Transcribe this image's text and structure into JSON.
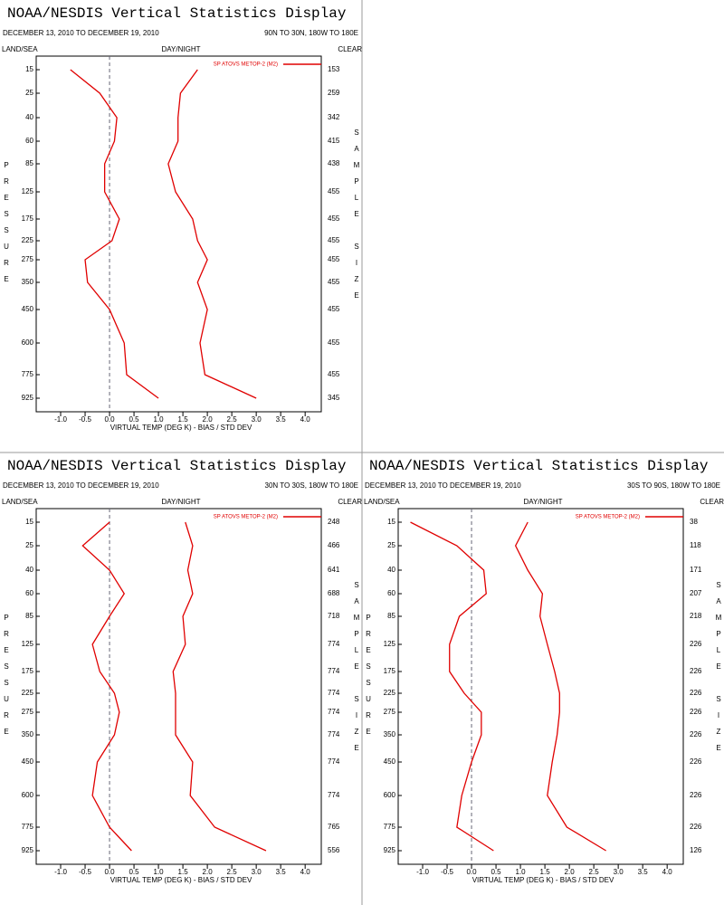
{
  "chart_data": [
    {
      "type": "line",
      "title": "NOAA/NESDIS Vertical Statistics Display",
      "subtitle": "DECEMBER 13, 2010 TO DECEMBER 19, 2010",
      "region": "90N TO 30N, 180W TO 180E",
      "land_sea": "LAND/SEA",
      "day_night": "DAY/NIGHT",
      "clear": "CLEAR",
      "y_label": "PRESSURE",
      "y2_label": "SAMPLE SIZE",
      "x_label": "VIRTUAL TEMP (DEG K) - BIAS / STD DEV",
      "categories": [
        15,
        25,
        40,
        60,
        85,
        125,
        175,
        225,
        275,
        350,
        450,
        600,
        775,
        925
      ],
      "sample_sizes": [
        153,
        259,
        342,
        415,
        438,
        455,
        455,
        455,
        455,
        455,
        455,
        455,
        455,
        345
      ],
      "series": [
        {
          "name": "SP ATOVS METOP-2 (M2)",
          "color": "#e00000",
          "bias": [
            -0.8,
            -0.2,
            0.15,
            0.1,
            -0.1,
            -0.1,
            0.2,
            0.05,
            -0.5,
            -0.45,
            0.0,
            0.3,
            0.35,
            1.0
          ],
          "std_dev": [
            1.8,
            1.45,
            1.4,
            1.4,
            1.2,
            1.35,
            1.7,
            1.8,
            2.0,
            1.8,
            2.0,
            1.85,
            1.95,
            3.0
          ]
        }
      ],
      "xlim": [
        -1.5,
        4.33
      ],
      "xticks": [
        {
          "value": -1,
          "label": "-1.0"
        },
        -0.5,
        {
          "value": 0,
          "label": "0.0"
        },
        0.5,
        {
          "value": 1,
          "label": "1.0"
        },
        1.5,
        {
          "value": 2,
          "label": "2.0"
        },
        2.5,
        {
          "value": 3,
          "label": "3.0"
        },
        3.5,
        {
          "value": 4,
          "label": "4.0"
        }
      ]
    },
    {
      "type": "line",
      "title": "NOAA/NESDIS Vertical Statistics Display",
      "subtitle": "DECEMBER 13, 2010 TO DECEMBER 19, 2010",
      "region": "30N TO 30S, 180W TO 180E",
      "land_sea": "LAND/SEA",
      "day_night": "DAY/NIGHT",
      "clear": "CLEAR",
      "y_label": "PRESSURE",
      "y2_label": "SAMPLE SIZE",
      "x_label": "VIRTUAL TEMP (DEG K) - BIAS / STD DEV",
      "categories": [
        15,
        25,
        40,
        60,
        85,
        125,
        175,
        225,
        275,
        350,
        450,
        600,
        775,
        925
      ],
      "sample_sizes": [
        248,
        466,
        641,
        688,
        718,
        774,
        774,
        774,
        774,
        774,
        774,
        774,
        765,
        556
      ],
      "series": [
        {
          "name": "SP ATOVS METOP-2 (M2)",
          "color": "#e00000",
          "bias": [
            0.0,
            -0.55,
            0.0,
            0.3,
            0.0,
            -0.35,
            -0.2,
            0.1,
            0.2,
            0.1,
            -0.25,
            -0.35,
            0.0,
            0.45
          ],
          "std_dev": [
            1.55,
            1.7,
            1.6,
            1.7,
            1.5,
            1.55,
            1.3,
            1.35,
            1.35,
            1.35,
            1.7,
            1.65,
            2.15,
            3.2
          ]
        }
      ],
      "xlim": [
        -1.5,
        4.33
      ],
      "xticks": [
        {
          "value": -1,
          "label": "-1.0"
        },
        -0.5,
        {
          "value": 0,
          "label": "0.0"
        },
        0.5,
        {
          "value": 1,
          "label": "1.0"
        },
        1.5,
        {
          "value": 2,
          "label": "2.0"
        },
        2.5,
        {
          "value": 3,
          "label": "3.0"
        },
        3.5,
        {
          "value": 4,
          "label": "4.0"
        }
      ]
    },
    {
      "type": "line",
      "title": "NOAA/NESDIS Vertical Statistics Display",
      "subtitle": "DECEMBER 13, 2010 TO DECEMBER 19, 2010",
      "region": "30S TO 90S, 180W TO 180E",
      "land_sea": "LAND/SEA",
      "day_night": "DAY/NIGHT",
      "clear": "CLEAR",
      "y_label": "PRESSURE",
      "y2_label": "SAMPLE SIZE",
      "x_label": "VIRTUAL TEMP (DEG K) - BIAS / STD DEV",
      "categories": [
        15,
        25,
        40,
        60,
        85,
        125,
        175,
        225,
        275,
        350,
        450,
        600,
        775,
        925
      ],
      "sample_sizes": [
        38,
        118,
        171,
        207,
        218,
        226,
        226,
        226,
        226,
        226,
        226,
        226,
        226,
        126
      ],
      "series": [
        {
          "name": "SP ATOVS METOP-2 (M2)",
          "color": "#e00000",
          "bias": [
            -1.25,
            -0.3,
            0.25,
            0.3,
            -0.25,
            -0.45,
            -0.45,
            -0.15,
            0.2,
            0.2,
            0.0,
            -0.2,
            -0.3,
            0.45
          ],
          "std_dev": [
            1.15,
            0.9,
            1.15,
            1.45,
            1.4,
            1.55,
            1.7,
            1.8,
            1.8,
            1.75,
            1.65,
            1.55,
            1.95,
            2.75
          ]
        }
      ],
      "xlim": [
        -1.5,
        4.33
      ],
      "xticks": [
        {
          "value": -1,
          "label": "-1.0"
        },
        -0.5,
        {
          "value": 0,
          "label": "0.0"
        },
        0.5,
        {
          "value": 1,
          "label": "1.0"
        },
        1.5,
        {
          "value": 2,
          "label": "2.0"
        },
        2.5,
        {
          "value": 3,
          "label": "3.0"
        },
        3.5,
        {
          "value": 4,
          "label": "4.0"
        }
      ]
    }
  ]
}
